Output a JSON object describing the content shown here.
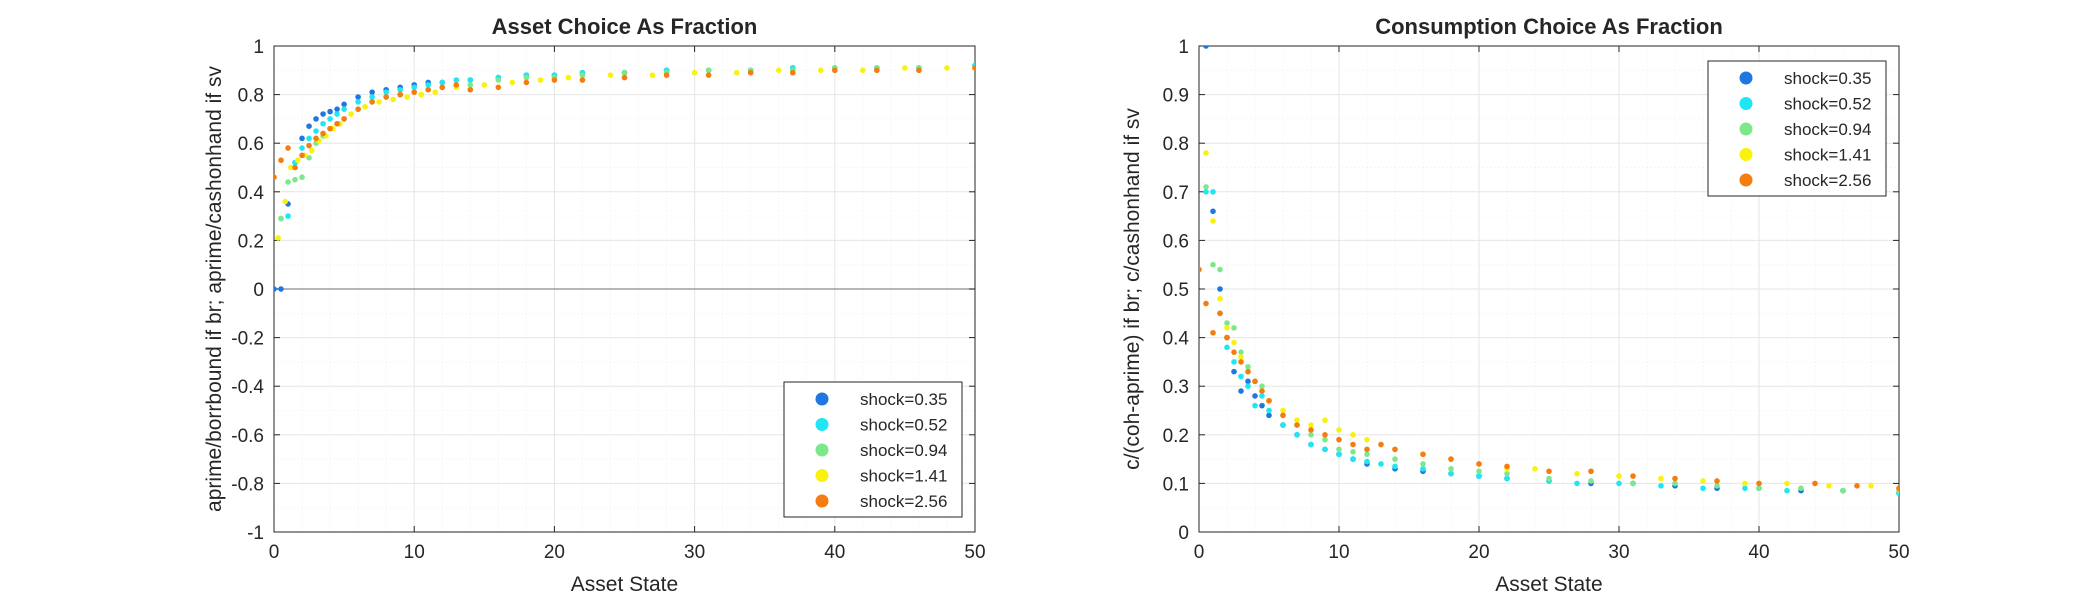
{
  "colors": {
    "grid": "#e6e6e6",
    "minor_grid": "#efefef",
    "axis": "#262626",
    "zero_line": "#8c8c8c",
    "series": [
      "#1f77e0",
      "#1fe6f2",
      "#7de88a",
      "#f8f20d",
      "#f57c10"
    ]
  },
  "chart_data": [
    {
      "type": "scatter",
      "title": "Asset Choice As Fraction",
      "xlabel": "Asset State",
      "ylabel": "aprime/borrbound if br; aprime/cashonhand if sv",
      "xlim": [
        0,
        50
      ],
      "ylim": [
        -1,
        1
      ],
      "xticks": [
        0,
        10,
        20,
        30,
        40,
        50
      ],
      "yticks": [
        -1,
        -0.8,
        -0.6,
        -0.4,
        -0.2,
        0,
        0.2,
        0.4,
        0.6,
        0.8,
        1
      ],
      "xtick_labels": [
        "0",
        "10",
        "20",
        "30",
        "40",
        "50"
      ],
      "ytick_labels": [
        "-1",
        "-0.8",
        "-0.6",
        "-0.4",
        "-0.2",
        "0",
        "0.2",
        "0.4",
        "0.6",
        "0.8",
        "1"
      ],
      "grid": true,
      "legend_position": "bottom-right",
      "series": [
        {
          "name": "shock=0.35",
          "x": [
            0,
            0.5,
            1,
            1.5,
            2,
            2.5,
            3,
            3.5,
            4,
            4.5,
            5,
            6,
            7,
            8,
            9,
            10,
            11,
            12,
            14,
            16,
            18,
            20,
            22,
            25,
            28,
            31,
            34,
            37,
            40,
            43,
            46,
            50
          ],
          "y": [
            0.0,
            0.0,
            0.35,
            0.52,
            0.62,
            0.67,
            0.7,
            0.72,
            0.73,
            0.74,
            0.76,
            0.79,
            0.81,
            0.82,
            0.83,
            0.84,
            0.85,
            0.85,
            0.86,
            0.87,
            0.88,
            0.88,
            0.89,
            0.89,
            0.9,
            0.9,
            0.9,
            0.91,
            0.91,
            0.91,
            0.91,
            0.92
          ]
        },
        {
          "name": "shock=0.52",
          "x": [
            0.5,
            1,
            1.5,
            2,
            2.5,
            3,
            3.5,
            4,
            4.5,
            5,
            6,
            7,
            8,
            9,
            10,
            11,
            12,
            13,
            14,
            16,
            18,
            20,
            22,
            25,
            28,
            31,
            34,
            37,
            40,
            43,
            46,
            50
          ],
          "y": [
            0.29,
            0.3,
            0.52,
            0.58,
            0.62,
            0.65,
            0.68,
            0.7,
            0.72,
            0.74,
            0.77,
            0.79,
            0.81,
            0.82,
            0.83,
            0.84,
            0.85,
            0.86,
            0.86,
            0.87,
            0.88,
            0.88,
            0.89,
            0.89,
            0.9,
            0.9,
            0.9,
            0.91,
            0.91,
            0.91,
            0.91,
            0.92
          ]
        },
        {
          "name": "shock=0.94",
          "x": [
            0.5,
            1,
            1.5,
            2,
            2.5,
            3,
            3.5,
            4,
            4.5,
            5,
            6,
            7,
            8,
            9,
            10,
            11,
            12,
            14,
            16,
            18,
            20,
            22,
            25,
            28,
            31,
            34,
            37,
            40,
            43,
            46,
            50
          ],
          "y": [
            0.29,
            0.44,
            0.45,
            0.46,
            0.54,
            0.6,
            0.63,
            0.66,
            0.68,
            0.7,
            0.74,
            0.77,
            0.79,
            0.8,
            0.81,
            0.82,
            0.83,
            0.84,
            0.86,
            0.87,
            0.87,
            0.88,
            0.89,
            0.89,
            0.9,
            0.9,
            0.9,
            0.91,
            0.91,
            0.91,
            0.91
          ]
        },
        {
          "name": "shock=1.41",
          "x": [
            0,
            0.3,
            0.8,
            1.2,
            1.7,
            2.2,
            2.7,
            3.2,
            3.7,
            4.2,
            4.7,
            5.5,
            6.5,
            7.5,
            8.5,
            9.5,
            10.5,
            11.5,
            13,
            15,
            17,
            19,
            21,
            24,
            27,
            30,
            33,
            36,
            39,
            42,
            45,
            48,
            50
          ],
          "y": [
            0.46,
            0.21,
            0.36,
            0.5,
            0.53,
            0.55,
            0.57,
            0.61,
            0.63,
            0.66,
            0.68,
            0.72,
            0.75,
            0.77,
            0.78,
            0.79,
            0.8,
            0.81,
            0.83,
            0.84,
            0.85,
            0.86,
            0.87,
            0.88,
            0.88,
            0.89,
            0.89,
            0.9,
            0.9,
            0.9,
            0.91,
            0.91,
            0.91
          ]
        },
        {
          "name": "shock=2.56",
          "x": [
            0,
            0.5,
            1,
            1.5,
            2,
            2.5,
            3,
            3.5,
            4,
            4.5,
            5,
            6,
            7,
            8,
            9,
            10,
            11,
            12,
            13,
            14,
            16,
            18,
            20,
            22,
            25,
            28,
            31,
            34,
            37,
            40,
            43,
            46,
            50
          ],
          "y": [
            0.46,
            0.53,
            0.58,
            0.5,
            0.55,
            0.59,
            0.62,
            0.64,
            0.66,
            0.68,
            0.7,
            0.74,
            0.77,
            0.79,
            0.8,
            0.81,
            0.82,
            0.83,
            0.84,
            0.82,
            0.83,
            0.85,
            0.86,
            0.86,
            0.87,
            0.88,
            0.88,
            0.89,
            0.89,
            0.9,
            0.9,
            0.9,
            0.91
          ]
        }
      ]
    },
    {
      "type": "scatter",
      "title": "Consumption Choice As Fraction",
      "xlabel": "Asset State",
      "ylabel": "c/(coh-aprime) if br; c/cashonhand if sv",
      "xlim": [
        0,
        50
      ],
      "ylim": [
        0,
        1
      ],
      "xticks": [
        0,
        10,
        20,
        30,
        40,
        50
      ],
      "yticks": [
        0,
        0.1,
        0.2,
        0.3,
        0.4,
        0.5,
        0.6,
        0.7,
        0.8,
        0.9,
        1
      ],
      "xtick_labels": [
        "0",
        "10",
        "20",
        "30",
        "40",
        "50"
      ],
      "ytick_labels": [
        "0",
        "0.1",
        "0.2",
        "0.3",
        "0.4",
        "0.5",
        "0.6",
        "0.7",
        "0.8",
        "0.9",
        "1"
      ],
      "grid": true,
      "legend_position": "top-right",
      "series": [
        {
          "name": "shock=0.35",
          "x": [
            0.5,
            1,
            1.5,
            2,
            2.5,
            3,
            3.5,
            4,
            4.5,
            5,
            6,
            7,
            8,
            9,
            10,
            11,
            12,
            14,
            16,
            18,
            20,
            22,
            25,
            28,
            31,
            34,
            37,
            40,
            43,
            46,
            50
          ],
          "y": [
            1.0,
            0.66,
            0.5,
            0.4,
            0.33,
            0.29,
            0.31,
            0.28,
            0.26,
            0.24,
            0.22,
            0.2,
            0.18,
            0.17,
            0.16,
            0.15,
            0.14,
            0.13,
            0.125,
            0.12,
            0.115,
            0.11,
            0.105,
            0.1,
            0.1,
            0.095,
            0.09,
            0.09,
            0.085,
            0.085,
            0.08
          ]
        },
        {
          "name": "shock=0.52",
          "x": [
            0.5,
            1,
            1.5,
            2,
            2.5,
            3,
            3.5,
            4,
            4.5,
            5,
            6,
            7,
            8,
            9,
            10,
            11,
            12,
            13,
            14,
            16,
            18,
            20,
            22,
            25,
            27,
            30,
            33,
            36,
            39,
            42,
            46,
            50
          ],
          "y": [
            0.7,
            0.7,
            0.45,
            0.38,
            0.35,
            0.32,
            0.3,
            0.26,
            0.28,
            0.25,
            0.22,
            0.2,
            0.18,
            0.17,
            0.16,
            0.15,
            0.145,
            0.14,
            0.135,
            0.13,
            0.12,
            0.115,
            0.11,
            0.105,
            0.1,
            0.1,
            0.095,
            0.09,
            0.09,
            0.085,
            0.085,
            0.08
          ]
        },
        {
          "name": "shock=0.94",
          "x": [
            0.5,
            1,
            1.5,
            2,
            2.5,
            3,
            3.5,
            4,
            4.5,
            5,
            6,
            7,
            8,
            9,
            10,
            11,
            12,
            14,
            16,
            18,
            20,
            22,
            25,
            28,
            31,
            34,
            37,
            40,
            43,
            46,
            50
          ],
          "y": [
            0.71,
            0.55,
            0.54,
            0.43,
            0.42,
            0.37,
            0.34,
            0.31,
            0.3,
            0.27,
            0.24,
            0.22,
            0.2,
            0.19,
            0.17,
            0.165,
            0.16,
            0.15,
            0.14,
            0.13,
            0.125,
            0.12,
            0.11,
            0.105,
            0.1,
            0.1,
            0.095,
            0.09,
            0.09,
            0.085,
            0.085
          ]
        },
        {
          "name": "shock=1.41",
          "x": [
            0.5,
            1,
            1.5,
            2,
            2.5,
            3,
            3.5,
            4,
            4.5,
            5,
            6,
            7,
            8,
            9,
            10,
            11,
            12,
            14,
            16,
            18,
            20,
            22,
            24,
            27,
            30,
            33,
            36,
            39,
            42,
            45,
            48,
            50
          ],
          "y": [
            0.78,
            0.64,
            0.48,
            0.42,
            0.39,
            0.36,
            0.33,
            0.31,
            0.29,
            0.27,
            0.25,
            0.23,
            0.22,
            0.23,
            0.21,
            0.2,
            0.19,
            0.17,
            0.16,
            0.15,
            0.14,
            0.13,
            0.13,
            0.12,
            0.115,
            0.11,
            0.105,
            0.1,
            0.1,
            0.095,
            0.095,
            0.09
          ]
        },
        {
          "name": "shock=2.56",
          "x": [
            0,
            0.5,
            1,
            1.5,
            2,
            2.5,
            3,
            3.5,
            4,
            4.5,
            5,
            6,
            7,
            8,
            9,
            10,
            11,
            12,
            13,
            14,
            16,
            18,
            20,
            22,
            25,
            28,
            31,
            34,
            37,
            40,
            44,
            47,
            50
          ],
          "y": [
            0.54,
            0.47,
            0.41,
            0.45,
            0.4,
            0.37,
            0.35,
            0.33,
            0.31,
            0.29,
            0.27,
            0.24,
            0.22,
            0.21,
            0.2,
            0.19,
            0.18,
            0.17,
            0.18,
            0.17,
            0.16,
            0.15,
            0.14,
            0.135,
            0.125,
            0.125,
            0.115,
            0.11,
            0.105,
            0.1,
            0.1,
            0.095,
            0.09
          ]
        }
      ]
    }
  ]
}
